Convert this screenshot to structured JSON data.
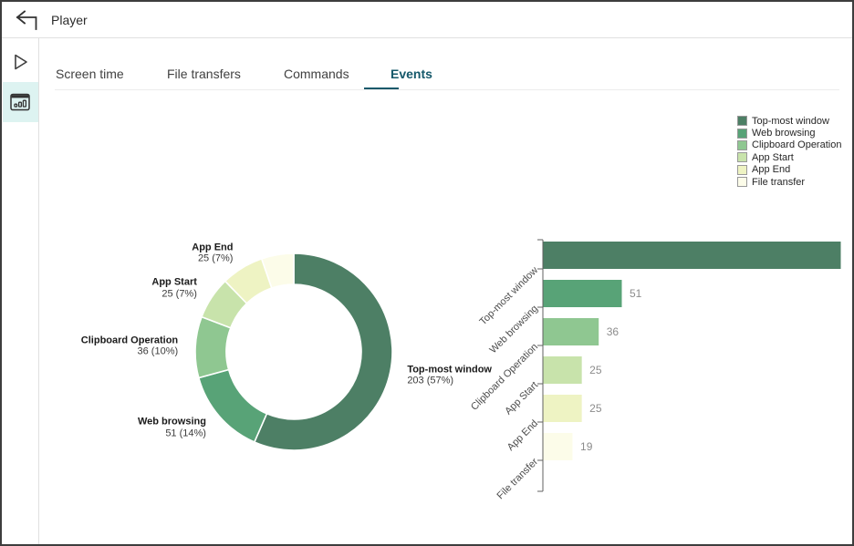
{
  "header": {
    "title": "Player"
  },
  "sidebar": {
    "items": [
      {
        "icon": "play-icon",
        "active": false
      },
      {
        "icon": "bar-chart-window-icon",
        "active": true
      }
    ]
  },
  "tabs": {
    "items": [
      "Screen time",
      "File transfers",
      "Commands",
      "Events"
    ],
    "active": "Events"
  },
  "colors": {
    "accent_teal": "#14586a",
    "sidebar_active_bg": "#ddf3f1"
  },
  "chart_data": [
    {
      "type": "pie",
      "subtype": "donut",
      "title": "",
      "categories": [
        "Top-most window",
        "Web browsing",
        "Clipboard Operation",
        "App Start",
        "App End",
        "File transfer"
      ],
      "values": [
        203,
        51,
        36,
        25,
        25,
        19
      ],
      "percent_labels": [
        "57%",
        "14%",
        "10%",
        "7%",
        "7%",
        ""
      ],
      "label_visible": [
        true,
        true,
        true,
        true,
        true,
        false
      ],
      "colors": [
        "#4d7f65",
        "#58a377",
        "#8fc791",
        "#c8e3ab",
        "#eef3c3",
        "#fcfce9"
      ],
      "legend_position": "top-right",
      "legend_items": [
        "Top-most window",
        "Web browsing",
        "Clipboard Operation",
        "App Start",
        "App End",
        "File transfer"
      ]
    },
    {
      "type": "bar",
      "orientation": "horizontal",
      "title": "",
      "categories": [
        "Top-most window",
        "Web browsing",
        "Clipboard Operation",
        "App Start",
        "App End",
        "File transfer"
      ],
      "values": [
        203,
        51,
        36,
        25,
        25,
        19
      ],
      "value_labels": [
        "",
        "51",
        "36",
        "25",
        "25",
        "19"
      ],
      "colors": [
        "#4d7f65",
        "#58a377",
        "#8fc791",
        "#c8e3ab",
        "#eef3c3",
        "#fcfce9"
      ],
      "xlim": [
        0,
        203
      ],
      "grid": false
    }
  ]
}
